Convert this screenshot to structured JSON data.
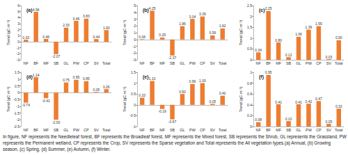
{
  "chart_data": [
    {
      "type": "bar",
      "title": "(a)",
      "y_label": "Trend (gC·m⁻²)",
      "categories": [
        "NF",
        "BF",
        "MF",
        "SB",
        "GL",
        "PW",
        "CP",
        "SV",
        "Total"
      ],
      "values": [
        0.33,
        4.96,
        0.46,
        -2.07,
        2.33,
        3.46,
        3.83,
        0.44,
        1.93
      ],
      "color": "#ed7d31",
      "ylim": [
        -3,
        6
      ],
      "yticks": [
        -3,
        -2,
        -1,
        0,
        1,
        2,
        3,
        4,
        5,
        6
      ],
      "grid": false,
      "data_labels": true
    },
    {
      "type": "bar",
      "title": "(b)",
      "y_label": "Trend (gC·m⁻²)",
      "categories": [
        "NF",
        "BF",
        "MF",
        "SB",
        "GL",
        "PW",
        "CP",
        "SV",
        "Total"
      ],
      "values": [
        0.06,
        4.25,
        0.29,
        -2.37,
        1.96,
        3.04,
        3.39,
        0.59,
        1.62
      ],
      "color": "#ed7d31",
      "ylim": [
        -3,
        5
      ],
      "yticks": [
        -3,
        -2,
        -1,
        0,
        1,
        2,
        3,
        4,
        5
      ],
      "grid": false,
      "data_labels": true
    },
    {
      "type": "bar",
      "title": "(c)",
      "y_label": "Trend (gC·m⁻²)",
      "categories": [
        "NF",
        "BF",
        "MF",
        "SB",
        "GL",
        "PW",
        "CP",
        "SV",
        "Total"
      ],
      "values": [
        0.34,
        2.25,
        0.8,
        0.12,
        1.06,
        1.39,
        1.55,
        0.03,
        0.9
      ],
      "value_labels": [
        "0.34",
        "2.25",
        "0.80",
        "0.12",
        "1.06",
        "1.39",
        "1.55",
        "0.03",
        "0.90"
      ],
      "color": "#ed7d31",
      "ylim": [
        0,
        2.5
      ],
      "yticks": [
        0,
        0.5,
        1,
        1.5,
        2,
        2.5
      ],
      "grid": false,
      "data_labels": true
    },
    {
      "type": "bar",
      "title": "(d)",
      "y_label": "Trend (gC·m⁻²)",
      "categories": [
        "NF",
        "BF",
        "MF",
        "SB",
        "GL",
        "PW",
        "CP",
        "SV",
        "Total"
      ],
      "values": [
        -0.74,
        1.14,
        -0.41,
        -2.0,
        0.75,
        0.95,
        0.85,
        0.05,
        0.26
      ],
      "value_labels": [
        "-0.74",
        "1.14",
        "-0.41",
        "-2.00",
        "0.75",
        "0.95",
        "0.85",
        "0.05",
        "0.26"
      ],
      "color": "#ed7d31",
      "ylim": [
        -2.5,
        1.5
      ],
      "yticks": [
        -2.5,
        -2,
        -1.5,
        -1,
        -0.5,
        0,
        0.5,
        1,
        1.5
      ],
      "grid": false,
      "data_labels": true
    },
    {
      "type": "bar",
      "title": "(e)",
      "y_label": "Trend (gC·m⁻²)",
      "categories": [
        "NF",
        "BF",
        "MF",
        "SB",
        "GL",
        "PW",
        "CP",
        "SV",
        "Total"
      ],
      "values": [
        0.33,
        1.1,
        -0.19,
        -0.67,
        0.5,
        0.96,
        1.0,
        0.05,
        0.42
      ],
      "value_labels": [
        "0.33",
        "1.10",
        "-0.19",
        "-0.67",
        "0.50",
        "0.96",
        "1.00",
        "0.05",
        "0.42"
      ],
      "color": "#ed7d31",
      "ylim": [
        -1,
        1.5
      ],
      "yticks": [
        -1,
        -0.5,
        0,
        0.5,
        1,
        1.5
      ],
      "grid": false,
      "data_labels": true
    },
    {
      "type": "bar",
      "title": "(f)",
      "y_label": "Trend (gC·m⁻²)",
      "categories": [
        "NF",
        "BF",
        "MF",
        "SB",
        "GL",
        "PW",
        "CP",
        "SV",
        "Total"
      ],
      "values": [
        0.08,
        0.95,
        0.41,
        0.1,
        0.41,
        0.42,
        0.47,
        0.05,
        0.33
      ],
      "value_labels": [
        "0.08",
        "0.95",
        "0.41",
        "0.10",
        "0.41",
        "0.42",
        "0.47",
        "0.05",
        "0.33"
      ],
      "color": "#ed7d31",
      "ylim": [
        0,
        1
      ],
      "yticks": [
        0,
        0.2,
        0.4,
        0.6,
        0.8,
        1
      ],
      "grid": false,
      "data_labels": true
    }
  ],
  "caption": [
    "In figure, NF represents the Needleleaf forest, BF represents the Broadleaf forest, MF represents the Mixed forest, SB represents the Shrub, GL represents the Grassland, PW represents the Permanent wetland, CP represents the Crop, SV represents the Sparse vegetation and Total represents the All vegetation types.(a) Annual, (b) Growing season, (c) Spring, (d) Summer, (e) Autumn, (f) Winter."
  ]
}
